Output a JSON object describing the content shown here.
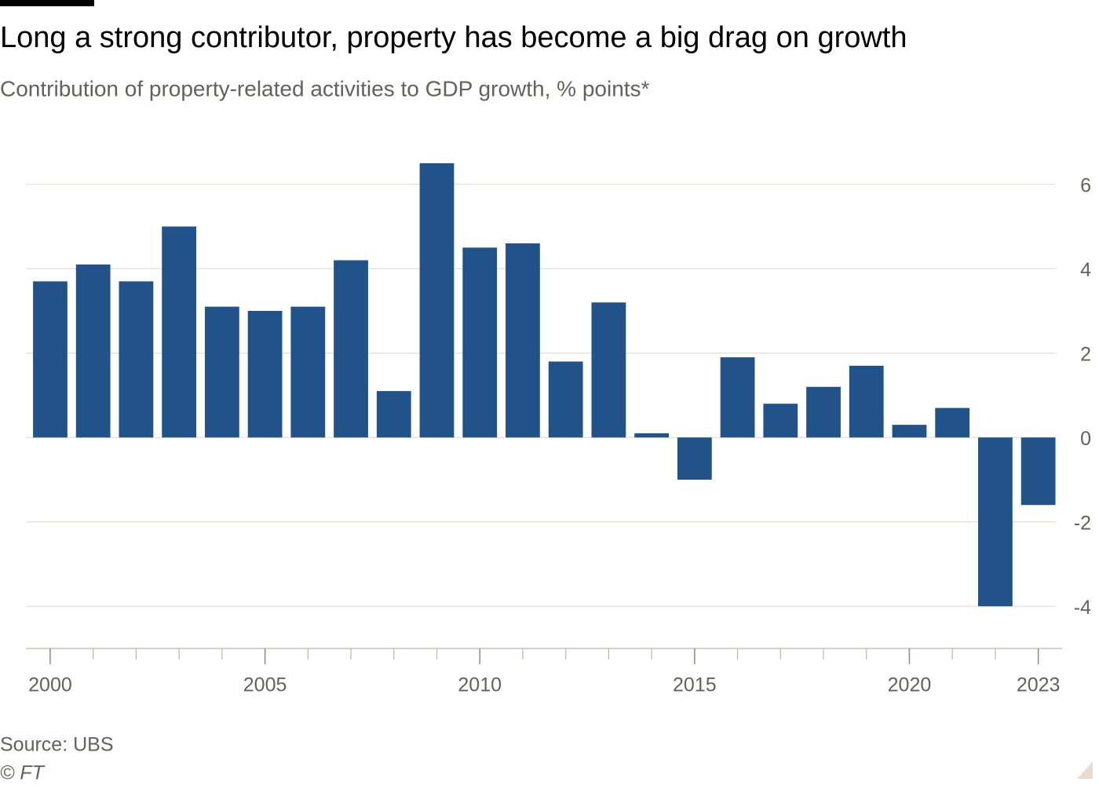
{
  "chart_data": {
    "type": "bar",
    "title": "Long a strong contributor, property has become a big drag on growth",
    "subtitle": "Contribution of property-related activities to GDP growth, % points*",
    "source": "Source: UBS",
    "credit": "© FT",
    "x": [
      2000,
      2001,
      2002,
      2003,
      2004,
      2005,
      2006,
      2007,
      2008,
      2009,
      2010,
      2011,
      2012,
      2013,
      2014,
      2015,
      2016,
      2017,
      2018,
      2019,
      2020,
      2021,
      2022,
      2023
    ],
    "values": [
      3.7,
      4.1,
      3.7,
      5.0,
      3.1,
      3.0,
      3.1,
      4.2,
      1.1,
      6.5,
      4.5,
      4.6,
      1.8,
      3.2,
      0.1,
      -1.0,
      1.9,
      0.8,
      1.2,
      1.7,
      0.3,
      0.7,
      -4.0,
      -1.6
    ],
    "color": "#215289",
    "xlim": [
      1999.5,
      2023.5
    ],
    "xticks": [
      2000,
      2005,
      2010,
      2015,
      2020,
      2023
    ],
    "ylim": [
      -5,
      7
    ],
    "yticks": [
      -4,
      -2,
      0,
      2,
      4,
      6
    ],
    "grid": true
  }
}
